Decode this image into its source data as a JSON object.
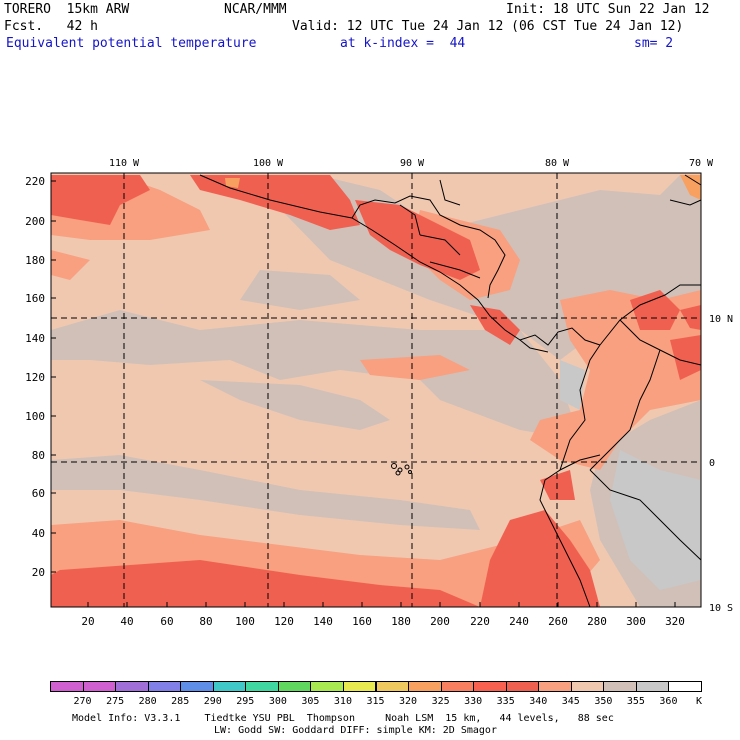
{
  "header": {
    "model": "TORERO  15km ARW",
    "center": "NCAR/MMM",
    "init": "Init: 18 UTC Sun 22 Jan 12",
    "fcst": "Fcst.   42 h",
    "valid": "Valid: 12 UTC Tue 24 Jan 12 (06 CST Tue 24 Jan 12)",
    "field": "Equivalent potential temperature",
    "level": "at k-index =  44",
    "smooth": "sm= 2"
  },
  "map": {
    "lon_labels": [
      "110 W",
      "100 W",
      "90 W",
      "80 W",
      "70 W"
    ],
    "lat_labels": [
      "10 N",
      "0",
      "10 S"
    ],
    "y_ticks": [
      "220",
      "200",
      "180",
      "160",
      "140",
      "120",
      "100",
      "80",
      "60",
      "40",
      "20"
    ],
    "x_ticks": [
      "20",
      "40",
      "60",
      "80",
      "100",
      "120",
      "140",
      "160",
      "180",
      "200",
      "220",
      "240",
      "260",
      "280",
      "300",
      "320"
    ]
  },
  "colorbar": {
    "labels": [
      "270",
      "275",
      "280",
      "285",
      "290",
      "295",
      "300",
      "305",
      "310",
      "315",
      "320",
      "325",
      "330",
      "335",
      "340",
      "345",
      "350",
      "355",
      "360"
    ],
    "unit": "K",
    "colors": [
      "#d060d0",
      "#a070d8",
      "#8080e8",
      "#5f8ee8",
      "#40c8c8",
      "#40d8a0",
      "#60d860",
      "#a8e850",
      "#e8e850",
      "#f0c860",
      "#f8a060",
      "#f88060",
      "#f86050",
      "#f06050",
      "#f8a080",
      "#f0c8b0",
      "#d0c0b8",
      "#c8c8c8",
      "#ffffff"
    ]
  },
  "footer": {
    "line1": "Model Info: V3.3.1    Tiedtke YSU PBL  Thompson     Noah LSM  15 km,   44 levels,   88 sec",
    "line2": "LW: Godd SW: Goddard DIFF: simple KM: 2D Smagor"
  }
}
